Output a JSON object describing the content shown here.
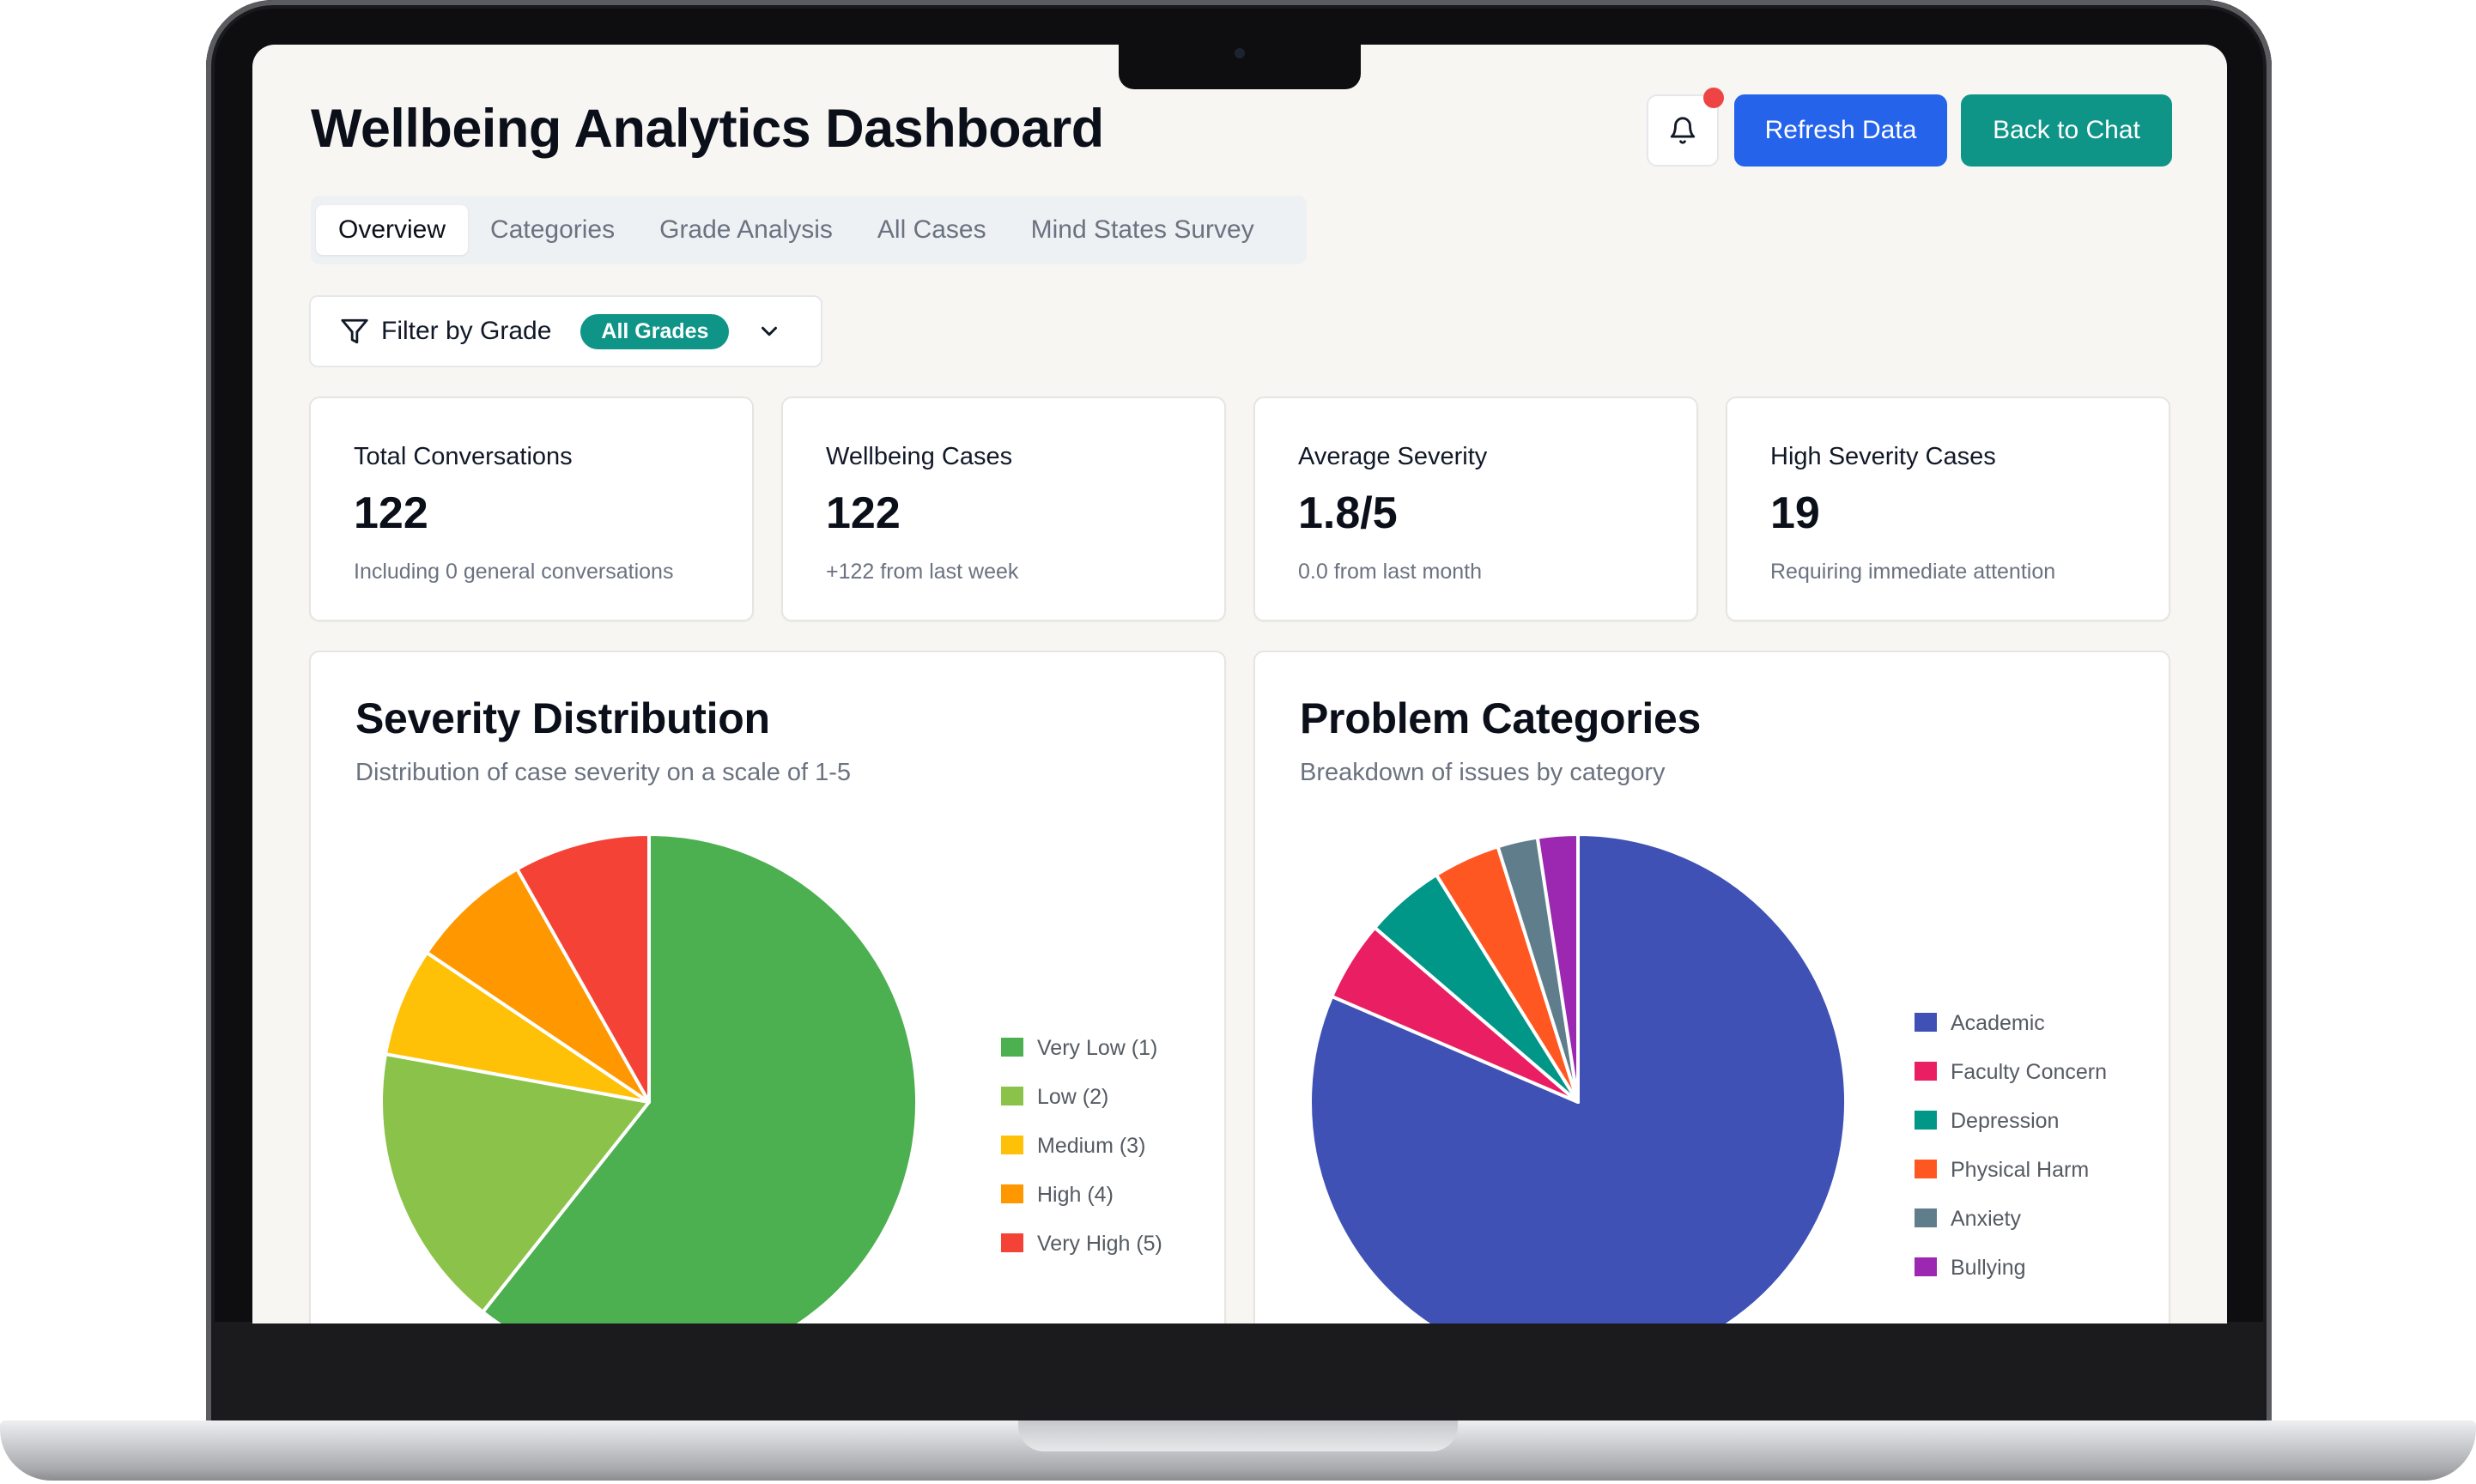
{
  "header": {
    "title": "Wellbeing Analytics Dashboard",
    "refresh_label": "Refresh Data",
    "back_label": "Back to Chat",
    "has_notification": true
  },
  "tabs": [
    {
      "label": "Overview",
      "active": true
    },
    {
      "label": "Categories",
      "active": false
    },
    {
      "label": "Grade Analysis",
      "active": false
    },
    {
      "label": "All Cases",
      "active": false
    },
    {
      "label": "Mind States Survey",
      "active": false
    }
  ],
  "filter": {
    "label": "Filter by Grade",
    "selected": "All Grades"
  },
  "stats": [
    {
      "label": "Total Conversations",
      "value": "122",
      "sub": "Including 0 general conversations"
    },
    {
      "label": "Wellbeing Cases",
      "value": "122",
      "sub": "+122 from last week"
    },
    {
      "label": "Average Severity",
      "value": "1.8/5",
      "sub": "0.0 from last month"
    },
    {
      "label": "High Severity Cases",
      "value": "19",
      "sub": "Requiring immediate attention"
    }
  ],
  "colors": {
    "primary": "#2563eb",
    "teal": "#0f9488",
    "notification": "#ef4444"
  },
  "chart_data": [
    {
      "type": "pie",
      "title": "Severity Distribution",
      "subtitle": "Distribution of case severity on a scale of 1-5",
      "legend_position": "right",
      "categories": [
        "Very Low (1)",
        "Low (2)",
        "Medium (3)",
        "High (4)",
        "Very High (5)"
      ],
      "values": [
        74,
        21,
        8,
        9,
        10
      ],
      "colors": [
        "#4caf50",
        "#8bc34a",
        "#ffc107",
        "#ff9800",
        "#f44336"
      ]
    },
    {
      "type": "pie",
      "title": "Problem Categories",
      "subtitle": "Breakdown of issues by category",
      "legend_position": "right",
      "categories": [
        "Academic",
        "Faculty Concern",
        "Depression",
        "Physical Harm",
        "Anxiety",
        "Bullying"
      ],
      "values": [
        101,
        6,
        6,
        5,
        3,
        3
      ],
      "colors": [
        "#3f51b5",
        "#e91e63",
        "#009688",
        "#ff5722",
        "#607d8b",
        "#9c27b0"
      ]
    }
  ]
}
